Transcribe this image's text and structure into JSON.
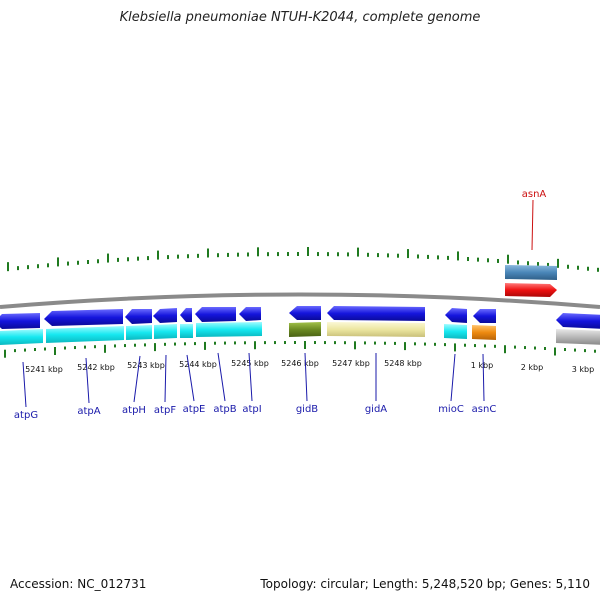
{
  "title": "Klebsiella pneumoniae NTUH-K2044, complete genome",
  "footer": {
    "accession": "Accession: NC_012731",
    "summary": "Topology: circular; Length: 5,248,520 bp; Genes: 5,110"
  },
  "colors": {
    "backbone": "#8a8a8a",
    "cds_forward": "#1515dd",
    "cds_reverse": "#1515dd",
    "tick": "#1f7a1f",
    "gene_label": "#1a1aaa",
    "top_label": "#cc1111",
    "cyan": "#16e8f0",
    "olive": "#6b8a22",
    "khaki": "#ece6a0",
    "orange": "#ee8a10",
    "steel": "#4a86b8",
    "red": "#ee1111",
    "grey_feature": "#b8b8b8"
  },
  "tick_labels": [
    "5241 kbp",
    "5242 kbp",
    "5243 kbp",
    "5244 kbp",
    "5245 kbp",
    "5246 kbp",
    "5247 kbp",
    "5248 kbp",
    "1 kbp",
    "2 kbp",
    "3 kbp"
  ],
  "genes_bottom": [
    "atpG",
    "atpA",
    "atpH",
    "atpF",
    "atpE",
    "atpB",
    "atpI",
    "gidB",
    "gidA",
    "mioC",
    "asnC"
  ],
  "genes_top": [
    "asnA"
  ]
}
